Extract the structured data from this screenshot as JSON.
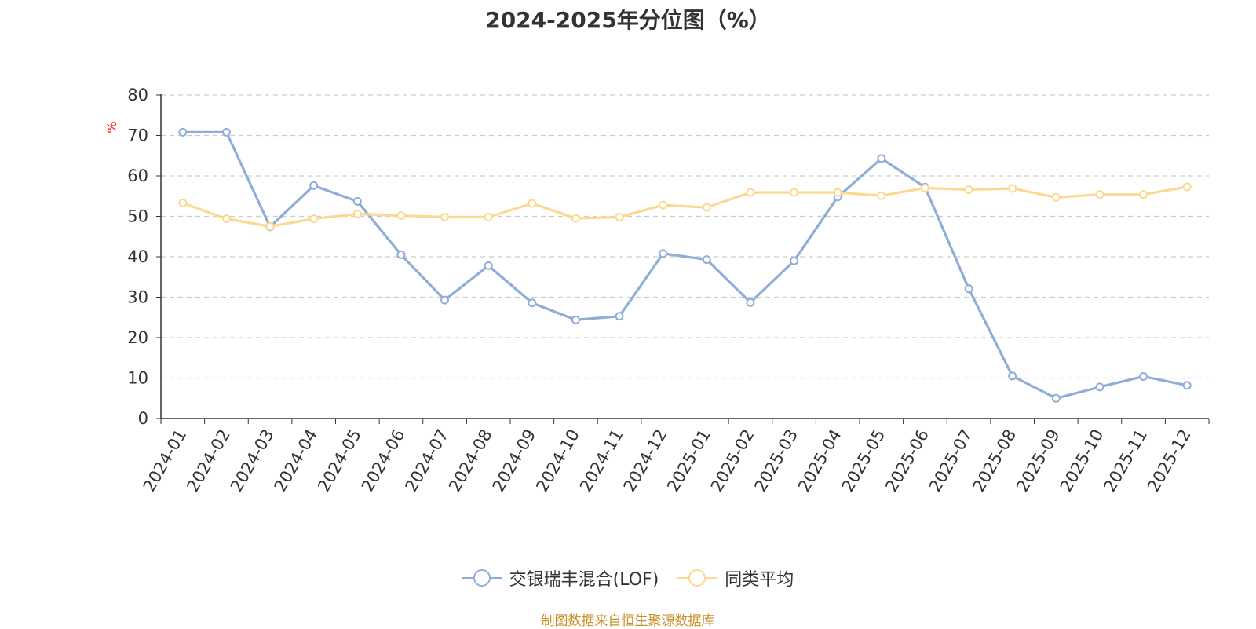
{
  "chart_data": {
    "type": "line",
    "title": "2024-2025年分位图（%）",
    "ylabel": "%",
    "xlabel": "",
    "ylim": [
      0,
      80
    ],
    "yticks": [
      0,
      10,
      20,
      30,
      40,
      50,
      60,
      70,
      80
    ],
    "grid": true,
    "legend_position": "bottom",
    "categories": [
      "2024-01",
      "2024-02",
      "2024-03",
      "2024-04",
      "2024-05",
      "2024-06",
      "2024-07",
      "2024-08",
      "2024-09",
      "2024-10",
      "2024-11",
      "2024-12",
      "2025-01",
      "2025-02",
      "2025-03",
      "2025-04",
      "2025-05",
      "2025-06",
      "2025-07",
      "2025-08",
      "2025-09",
      "2025-10",
      "2025-11",
      "2025-12"
    ],
    "series": [
      {
        "name": "交银瑞丰混合(LOF)",
        "color": "#8eaed8",
        "values": [
          70.8,
          70.8,
          47.4,
          57.6,
          53.7,
          40.5,
          29.3,
          37.8,
          28.6,
          24.4,
          25.3,
          40.8,
          39.3,
          28.7,
          39.0,
          54.8,
          64.3,
          57.2,
          32.1,
          10.5,
          5.0,
          7.8,
          10.4,
          8.2
        ]
      },
      {
        "name": "同类平均",
        "color": "#fbd993",
        "values": [
          53.3,
          49.4,
          47.5,
          49.4,
          50.6,
          50.2,
          49.8,
          49.8,
          53.2,
          49.5,
          49.8,
          52.8,
          52.2,
          55.9,
          55.9,
          55.9,
          55.1,
          57.0,
          56.6,
          56.9,
          54.7,
          55.4,
          55.4,
          57.3
        ]
      }
    ]
  },
  "source_text": "制图数据来自恒生聚源数据库"
}
